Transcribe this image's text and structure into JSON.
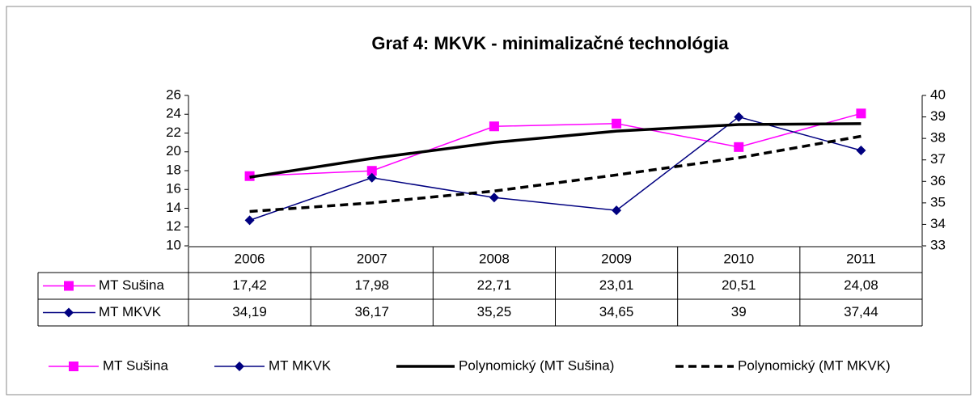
{
  "chart_data": {
    "type": "line",
    "title": "Graf 4: MKVK - minimalizačné technológia",
    "categories": [
      "2006",
      "2007",
      "2008",
      "2009",
      "2010",
      "2011"
    ],
    "ylim": [
      10,
      26
    ],
    "yticks": [
      10,
      12,
      14,
      16,
      18,
      20,
      22,
      24,
      26
    ],
    "y2lim": [
      33,
      40
    ],
    "y2ticks": [
      33,
      34,
      35,
      36,
      37,
      38,
      39,
      40
    ],
    "series": [
      {
        "name": "MT Sušina",
        "color": "#ff00ff",
        "marker": "square",
        "axis": "y",
        "values": [
          17.42,
          17.98,
          22.71,
          23.01,
          20.51,
          24.08
        ],
        "value_labels": [
          "17,42",
          "17,98",
          "22,71",
          "23,01",
          "20,51",
          "24,08"
        ]
      },
      {
        "name": "MT MKVK",
        "color": "#000080",
        "marker": "diamond",
        "axis": "y2",
        "values": [
          34.19,
          36.17,
          35.25,
          34.65,
          39,
          37.44
        ],
        "value_labels": [
          "34,19",
          "36,17",
          "35,25",
          "34,65",
          "39",
          "37,44"
        ]
      },
      {
        "name": "Polynomický (MT Sušina)",
        "color": "#000000",
        "style": "solid",
        "axis": "y",
        "values": [
          17.3,
          19.3,
          21.0,
          22.2,
          22.9,
          23.0
        ]
      },
      {
        "name": "Polynomický (MT MKVK)",
        "color": "#000000",
        "style": "dashed",
        "axis": "y2",
        "values": [
          34.6,
          35.0,
          35.55,
          36.3,
          37.1,
          38.1
        ]
      }
    ]
  }
}
